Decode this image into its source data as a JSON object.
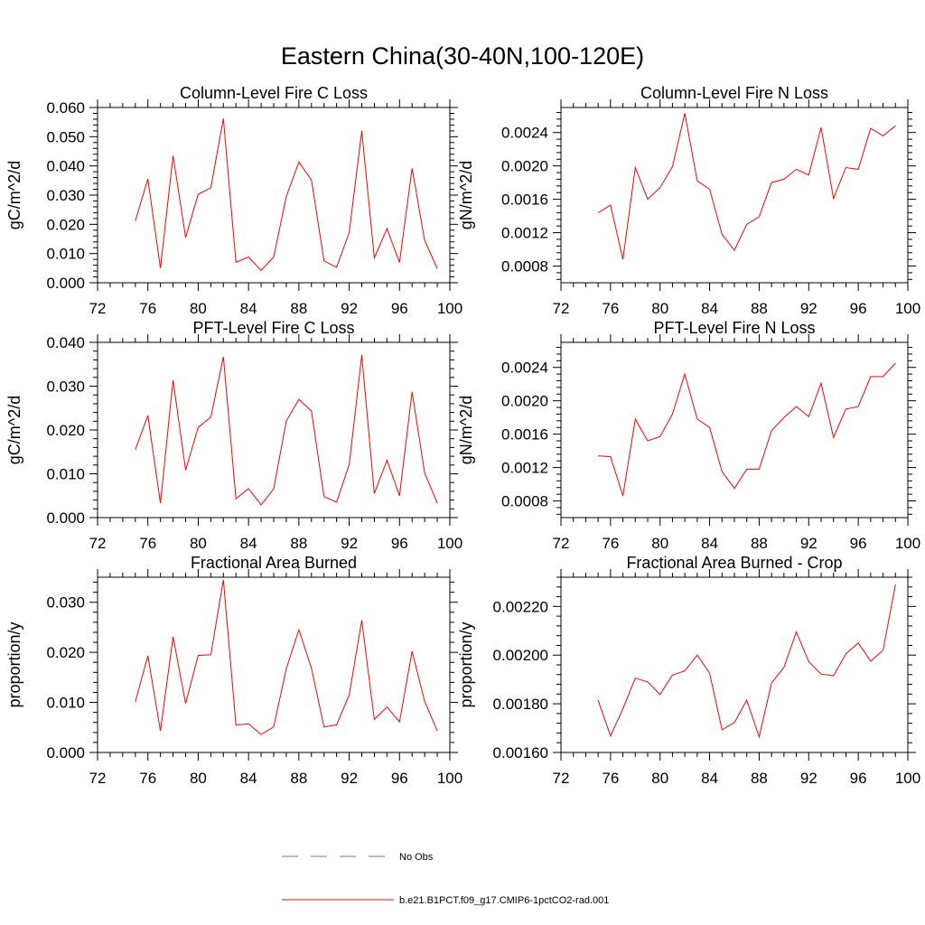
{
  "title": "Eastern China(30-40N,100-120E)",
  "colors": {
    "model": "#ff0000",
    "obs": "#6b6bd6"
  },
  "legend": {
    "obs_label": "No Obs",
    "model_label": "b.e21.B1PCT.f09_g17.CMIP6-1pctCO2-rad.001"
  },
  "chart_data": [
    {
      "type": "line",
      "title": "Column-Level Fire C Loss",
      "ylabel": "gC/m^2/d",
      "xlim": [
        72,
        100
      ],
      "ylim": [
        0,
        0.06
      ],
      "xticks": [
        72,
        76,
        80,
        84,
        88,
        92,
        96,
        100
      ],
      "xtick_labels": [
        "72",
        "76",
        "80",
        "84",
        "88",
        "92",
        "96",
        "100"
      ],
      "yticks": [
        0,
        0.01,
        0.02,
        0.03,
        0.04,
        0.05,
        0.06
      ],
      "ytick_labels": [
        "0.000",
        "0.010",
        "0.020",
        "0.030",
        "0.040",
        "0.050",
        "0.060"
      ],
      "x": [
        75,
        76,
        77,
        78,
        79,
        80,
        81,
        82,
        83,
        84,
        85,
        86,
        87,
        88,
        89,
        90,
        91,
        92,
        93,
        94,
        95,
        96,
        97,
        98,
        99
      ],
      "series": [
        {
          "values": [
            0.0212,
            0.0355,
            0.005,
            0.0435,
            0.0155,
            0.0303,
            0.0325,
            0.0562,
            0.007,
            0.0088,
            0.0042,
            0.0088,
            0.0295,
            0.0413,
            0.0352,
            0.0075,
            0.0053,
            0.0172,
            0.052,
            0.0085,
            0.0185,
            0.007,
            0.0392,
            0.0145,
            0.0048
          ]
        }
      ]
    },
    {
      "type": "line",
      "title": "Column-Level Fire N Loss",
      "ylabel": "gN/m^2/d",
      "xlim": [
        72,
        100
      ],
      "ylim": [
        0.0006,
        0.0027
      ],
      "xticks": [
        72,
        76,
        80,
        84,
        88,
        92,
        96,
        100
      ],
      "xtick_labels": [
        "72",
        "76",
        "80",
        "84",
        "88",
        "92",
        "96",
        "100"
      ],
      "yticks": [
        0.0008,
        0.0012,
        0.0016,
        0.002,
        0.0024
      ],
      "ytick_labels": [
        "0.0008",
        "0.0012",
        "0.0016",
        "0.0020",
        "0.0024"
      ],
      "x": [
        75,
        76,
        77,
        78,
        79,
        80,
        81,
        82,
        83,
        84,
        85,
        86,
        87,
        88,
        89,
        90,
        91,
        92,
        93,
        94,
        95,
        96,
        97,
        98,
        99
      ],
      "series": [
        {
          "values": [
            0.00144,
            0.00153,
            0.00088,
            0.00198,
            0.0016,
            0.00174,
            0.00199,
            0.00263,
            0.00182,
            0.00172,
            0.00118,
            0.00099,
            0.0013,
            0.00139,
            0.0018,
            0.00184,
            0.00196,
            0.00189,
            0.00246,
            0.00161,
            0.00198,
            0.00196,
            0.00245,
            0.00236,
            0.00248
          ]
        }
      ]
    },
    {
      "type": "line",
      "title": "PFT-Level Fire C Loss",
      "ylabel": "gC/m^2/d",
      "xlim": [
        72,
        100
      ],
      "ylim": [
        0,
        0.04
      ],
      "xticks": [
        72,
        76,
        80,
        84,
        88,
        92,
        96,
        100
      ],
      "xtick_labels": [
        "72",
        "76",
        "80",
        "84",
        "88",
        "92",
        "96",
        "100"
      ],
      "yticks": [
        0,
        0.01,
        0.02,
        0.03,
        0.04
      ],
      "ytick_labels": [
        "0.000",
        "0.010",
        "0.020",
        "0.030",
        "0.040"
      ],
      "x": [
        75,
        76,
        77,
        78,
        79,
        80,
        81,
        82,
        83,
        84,
        85,
        86,
        87,
        88,
        89,
        90,
        91,
        92,
        93,
        94,
        95,
        96,
        97,
        98,
        99
      ],
      "series": [
        {
          "values": [
            0.0155,
            0.0233,
            0.0033,
            0.0314,
            0.0108,
            0.0206,
            0.0229,
            0.0367,
            0.0043,
            0.0066,
            0.0029,
            0.0066,
            0.022,
            0.027,
            0.0243,
            0.0048,
            0.0035,
            0.0121,
            0.0371,
            0.0055,
            0.0131,
            0.005,
            0.0287,
            0.0102,
            0.0033
          ]
        }
      ]
    },
    {
      "type": "line",
      "title": "PFT-Level Fire N Loss",
      "ylabel": "gN/m^2/d",
      "xlim": [
        72,
        100
      ],
      "ylim": [
        0.0006,
        0.0027
      ],
      "xticks": [
        72,
        76,
        80,
        84,
        88,
        92,
        96,
        100
      ],
      "xtick_labels": [
        "72",
        "76",
        "80",
        "84",
        "88",
        "92",
        "96",
        "100"
      ],
      "yticks": [
        0.0008,
        0.0012,
        0.0016,
        0.002,
        0.0024
      ],
      "ytick_labels": [
        "0.0008",
        "0.0012",
        "0.0016",
        "0.0020",
        "0.0024"
      ],
      "x": [
        75,
        76,
        77,
        78,
        79,
        80,
        81,
        82,
        83,
        84,
        85,
        86,
        87,
        88,
        89,
        90,
        91,
        92,
        93,
        94,
        95,
        96,
        97,
        98,
        99
      ],
      "series": [
        {
          "values": [
            0.00134,
            0.00133,
            0.00086,
            0.00178,
            0.00152,
            0.00157,
            0.00184,
            0.00232,
            0.00178,
            0.00168,
            0.00115,
            0.00095,
            0.00118,
            0.00118,
            0.00164,
            0.0018,
            0.00193,
            0.00181,
            0.00221,
            0.00156,
            0.0019,
            0.00193,
            0.00229,
            0.00229,
            0.00245
          ]
        }
      ]
    },
    {
      "type": "line",
      "title": "Fractional Area Burned",
      "ylabel": "proportion/y",
      "xlim": [
        72,
        100
      ],
      "ylim": [
        0,
        0.035
      ],
      "xticks": [
        72,
        76,
        80,
        84,
        88,
        92,
        96,
        100
      ],
      "xtick_labels": [
        "72",
        "76",
        "80",
        "84",
        "88",
        "92",
        "96",
        "100"
      ],
      "yticks": [
        0,
        0.01,
        0.02,
        0.03
      ],
      "ytick_labels": [
        "0.000",
        "0.010",
        "0.020",
        "0.030"
      ],
      "x": [
        75,
        76,
        77,
        78,
        79,
        80,
        81,
        82,
        83,
        84,
        85,
        86,
        87,
        88,
        89,
        90,
        91,
        92,
        93,
        94,
        95,
        96,
        97,
        98,
        99
      ],
      "series": [
        {
          "values": [
            0.0101,
            0.0193,
            0.0043,
            0.0231,
            0.0098,
            0.0194,
            0.0195,
            0.0345,
            0.0055,
            0.0057,
            0.0036,
            0.0051,
            0.0167,
            0.0245,
            0.0168,
            0.0051,
            0.0055,
            0.0115,
            0.0264,
            0.0066,
            0.0091,
            0.0061,
            0.0202,
            0.0102,
            0.0043
          ]
        }
      ]
    },
    {
      "type": "line",
      "title": "Fractional Area Burned - Crop",
      "ylabel": "proportion/y",
      "xlim": [
        72,
        100
      ],
      "ylim": [
        0.0016,
        0.00232
      ],
      "xticks": [
        72,
        76,
        80,
        84,
        88,
        92,
        96,
        100
      ],
      "xtick_labels": [
        "72",
        "76",
        "80",
        "84",
        "88",
        "92",
        "96",
        "100"
      ],
      "yticks": [
        0.0016,
        0.0018,
        0.002,
        0.0022
      ],
      "ytick_labels": [
        "0.00160",
        "0.00180",
        "0.00200",
        "0.00220"
      ],
      "x": [
        75,
        76,
        77,
        78,
        79,
        80,
        81,
        82,
        83,
        84,
        85,
        86,
        87,
        88,
        89,
        90,
        91,
        92,
        93,
        94,
        95,
        96,
        97,
        98,
        99
      ],
      "series": [
        {
          "values": [
            0.001815,
            0.001668,
            0.00178,
            0.001905,
            0.00189,
            0.001838,
            0.001918,
            0.001935,
            0.002,
            0.001925,
            0.001693,
            0.001723,
            0.001815,
            0.001664,
            0.001885,
            0.00195,
            0.002095,
            0.001973,
            0.001922,
            0.001915,
            0.002005,
            0.00205,
            0.001975,
            0.00202,
            0.00229
          ]
        }
      ]
    }
  ]
}
